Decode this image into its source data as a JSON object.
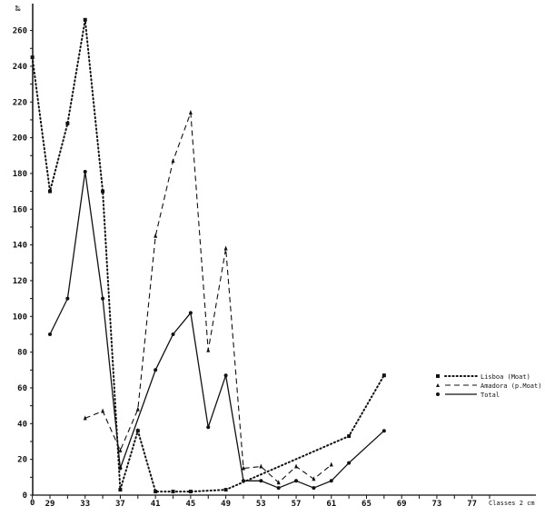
{
  "chart_data": {
    "type": "line",
    "title": "",
    "xlabel": "Classes 2 cm",
    "ylabel": "‰",
    "ylim": [
      0,
      265
    ],
    "xlim": [
      25,
      79
    ],
    "grid": false,
    "legend_position": "right-middle",
    "x_ticks": [
      29,
      33,
      37,
      41,
      45,
      49,
      53,
      57,
      61,
      65,
      69,
      73,
      77
    ],
    "x_origin_label": "0",
    "y_ticks": [
      0,
      20,
      40,
      60,
      80,
      100,
      120,
      140,
      160,
      180,
      200,
      220,
      240,
      260
    ],
    "series": [
      {
        "name": "Lisboa (Moat)",
        "style": "dotted",
        "marker": "square",
        "points": [
          [
            27,
            245
          ],
          [
            29,
            170
          ],
          [
            31,
            208
          ],
          [
            33,
            266
          ],
          [
            35,
            170
          ],
          [
            37,
            3
          ],
          [
            39,
            36
          ],
          [
            41,
            2
          ],
          [
            43,
            2
          ],
          [
            45,
            2
          ],
          [
            49,
            3
          ],
          [
            63,
            33
          ],
          [
            67,
            67
          ]
        ]
      },
      {
        "name": "Amadora (p.Moat)",
        "style": "dashed",
        "marker": "triangle",
        "points": [
          [
            33,
            43
          ],
          [
            35,
            47
          ],
          [
            37,
            25
          ],
          [
            39,
            48
          ],
          [
            41,
            145
          ],
          [
            43,
            187
          ],
          [
            45,
            214
          ],
          [
            47,
            81
          ],
          [
            49,
            138
          ],
          [
            51,
            15
          ],
          [
            53,
            16
          ],
          [
            55,
            7
          ],
          [
            57,
            16
          ],
          [
            59,
            9
          ],
          [
            61,
            17
          ]
        ]
      },
      {
        "name": "Total",
        "style": "solid",
        "marker": "circle",
        "points": [
          [
            29,
            90
          ],
          [
            31,
            110
          ],
          [
            33,
            181
          ],
          [
            35,
            110
          ],
          [
            37,
            15
          ],
          [
            41,
            70
          ],
          [
            43,
            90
          ],
          [
            45,
            102
          ],
          [
            47,
            38
          ],
          [
            49,
            67
          ],
          [
            51,
            8
          ],
          [
            53,
            8
          ],
          [
            55,
            4
          ],
          [
            57,
            8
          ],
          [
            59,
            4
          ],
          [
            61,
            8
          ],
          [
            63,
            18
          ],
          [
            67,
            36
          ]
        ]
      }
    ]
  },
  "axis": {
    "y_unit": "‰",
    "x_caption": "Classes 2 cm",
    "origin": "0"
  },
  "legend": [
    {
      "label": "Lisboa (Moat)",
      "style": "dotted"
    },
    {
      "label": "Amadora (p.Moat)",
      "style": "dashed"
    },
    {
      "label": "Total",
      "style": "solid"
    }
  ]
}
